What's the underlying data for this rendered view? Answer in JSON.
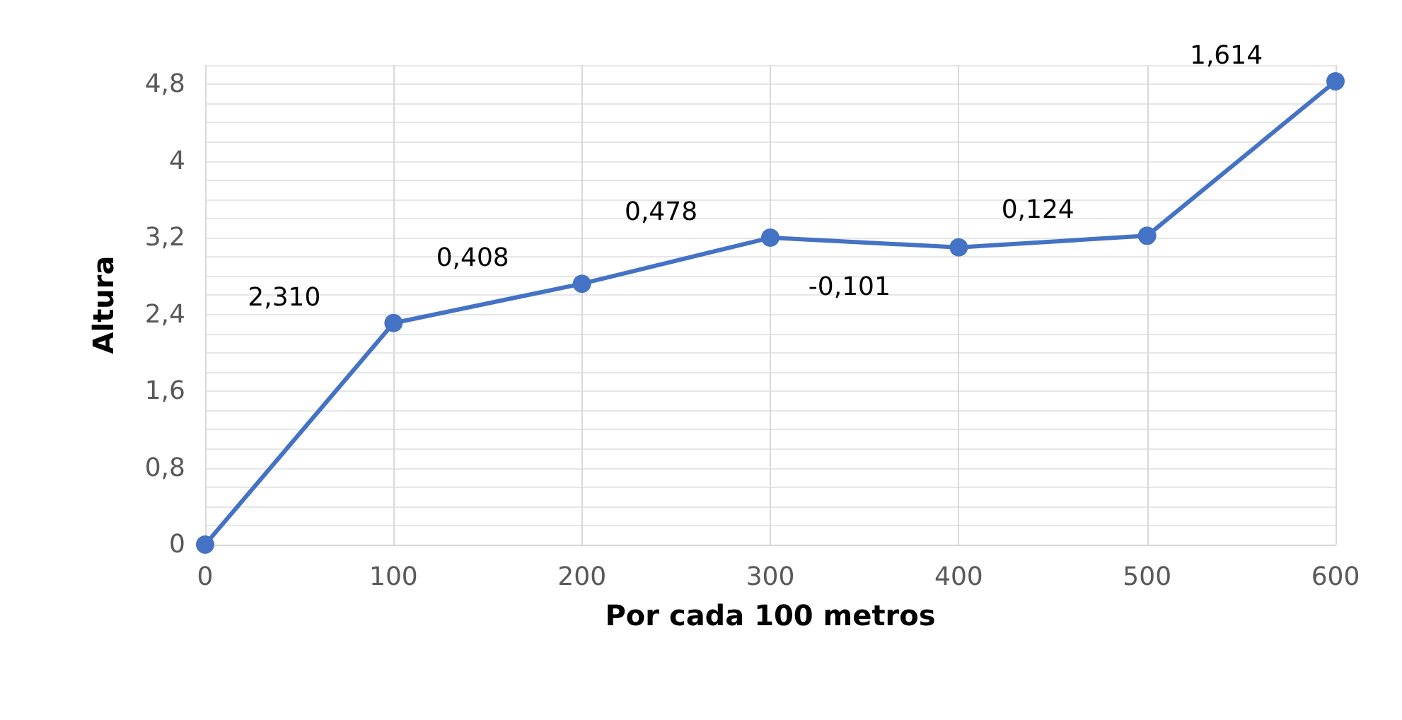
{
  "chart_data": {
    "type": "line",
    "xlabel": "Por cada 100 metros",
    "ylabel": "Altura",
    "x": [
      0,
      100,
      200,
      300,
      400,
      500,
      600
    ],
    "series": [
      {
        "color": "#4472c4",
        "values": [
          0,
          2.31,
          2.72,
          3.2,
          3.1,
          3.22,
          4.83
        ]
      }
    ],
    "xlim": [
      0,
      600
    ],
    "xticks": [
      0,
      100,
      200,
      300,
      400,
      500,
      600
    ],
    "ylim": [
      0,
      5
    ],
    "yticks": [
      {
        "value": 0,
        "label": "0"
      },
      {
        "value": 0.2,
        "label": null
      },
      {
        "value": 0.4,
        "label": null
      },
      {
        "value": 0.6,
        "label": null
      },
      {
        "value": 0.8,
        "label": "0,8"
      },
      {
        "value": 1,
        "label": null
      },
      {
        "value": 1.2,
        "label": null
      },
      {
        "value": 1.4,
        "label": null
      },
      {
        "value": 1.6,
        "label": "1,6"
      },
      {
        "value": 1.8,
        "label": null
      },
      {
        "value": 2,
        "label": null
      },
      {
        "value": 2.2,
        "label": null
      },
      {
        "value": 2.4,
        "label": "2,4"
      },
      {
        "value": 2.6,
        "label": null
      },
      {
        "value": 2.8,
        "label": null
      },
      {
        "value": 3,
        "label": null
      },
      {
        "value": 3.2,
        "label": "3,2"
      },
      {
        "value": 3.4,
        "label": null
      },
      {
        "value": 3.6,
        "label": null
      },
      {
        "value": 3.8,
        "label": null
      },
      {
        "value": 4,
        "label": "4"
      },
      {
        "value": 4.2,
        "label": null
      },
      {
        "value": 4.4,
        "label": null
      },
      {
        "value": 4.6,
        "label": null
      },
      {
        "value": 4.8,
        "label": "4,8"
      },
      {
        "value": 5,
        "label": null
      }
    ],
    "grid": true,
    "marker": "circle",
    "line_style": "solid",
    "annotations": [
      "2,310",
      "0,408",
      "0,478",
      "-0,101",
      "0,124",
      "1,614"
    ]
  }
}
